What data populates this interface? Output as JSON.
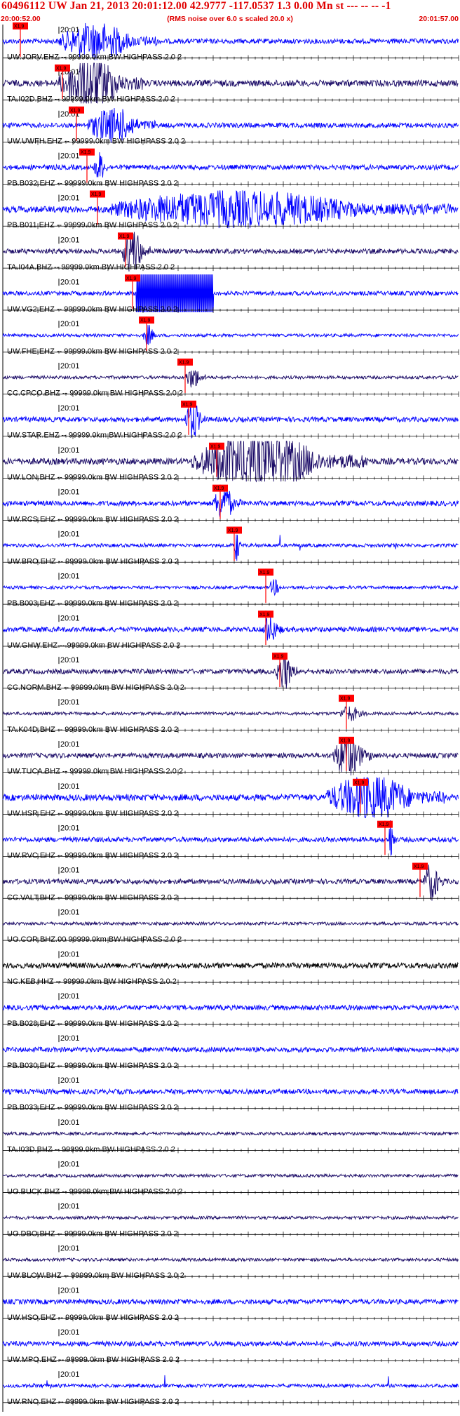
{
  "header": {
    "title": "60496112 UW Jan 21, 2013 20:01:12.00   42.9777 -117.0537  1.3 0.00 Mn st --- -- --  -1",
    "subtitle": "(RMS noise over 6.0 s scaled 20.0 x)",
    "start_time": "20:00:52.00",
    "end_time": "20:01:57.00"
  },
  "minute_label": "20:01",
  "pick_label": "X1.9",
  "colors": {
    "header": "#e00000",
    "trace_blue": "#0000ff",
    "trace_navy": "#1a0a66",
    "trace_black": "#000000",
    "pick": "#ff0000",
    "axis": "#000000"
  },
  "chart_data": {
    "type": "seismogram",
    "time_range_s": [
      0,
      65
    ],
    "x_tick_minor_s": 1,
    "x_tick_major_s": 5,
    "traces": [
      {
        "label": "UW.JORV.EHZ -- 99999.0km BW  HIGHPASS  2.0  2",
        "pick_s": 2.5,
        "color": "blue",
        "amp": "mid",
        "burst_s": [
          8,
          22
        ],
        "bamp": 2.2
      },
      {
        "label": "TA.I02D.BHZ -- 99999.0km BW  HIGHPASS  2.0  2",
        "pick_s": 8.5,
        "color": "navy",
        "amp": "high",
        "burst_s": [
          8,
          20
        ],
        "bamp": 2.5
      },
      {
        "label": "UW.UWFH.EHZ -- 99999.0km BW  HIGHPASS  2.0  2",
        "pick_s": 10.5,
        "color": "blue",
        "amp": "mid",
        "burst_s": [
          12,
          22
        ],
        "bamp": 2.0
      },
      {
        "label": "PB.B032.EHZ -- 99999.0km BW  HIGHPASS  2.0  2",
        "pick_s": 12.0,
        "color": "blue",
        "amp": "mid",
        "burst_s": [
          13,
          15
        ],
        "bamp": 1.8
      },
      {
        "label": "PB.B011.EHZ -- 99999.0km BW  HIGHPASS  2.0  2",
        "pick_s": 13.5,
        "color": "blue",
        "amp": "high",
        "burst_s": [
          15,
          64
        ],
        "bamp": 1.6
      },
      {
        "label": "TA.I04A.BHZ -- 99999.0km BW  HIGHPASS  2.0  2",
        "pick_s": 17.5,
        "color": "navy",
        "amp": "mid",
        "burst_s": [
          17,
          21
        ],
        "bamp": 2.6
      },
      {
        "label": "UW.VG2.EHZ -- 99999.0km BW  HIGHPASS  2.0  2",
        "pick_s": 18.5,
        "color": "blue",
        "amp": "clip",
        "burst_s": [
          19,
          30
        ],
        "bamp": 4.0
      },
      {
        "label": "UW.FHE.EHZ -- 99999.0km BW  HIGHPASS  2.0  2",
        "pick_s": 20.5,
        "color": "blue",
        "amp": "low",
        "burst_s": [
          20,
          22
        ],
        "bamp": 2.0
      },
      {
        "label": "CC.CPCO.BHZ -- 99999.0km BW  HIGHPASS  2.0  2",
        "pick_s": 26.0,
        "color": "navy",
        "amp": "low",
        "burst_s": [
          26,
          29
        ],
        "bamp": 2.0
      },
      {
        "label": "UW.STAR.EHZ -- 99999.0km BW  HIGHPASS  2.0  2",
        "pick_s": 26.5,
        "color": "blue",
        "amp": "mid",
        "burst_s": [
          26,
          29
        ],
        "bamp": 2.2
      },
      {
        "label": "UW.LON.BHZ -- 99999.0km BW  HIGHPASS  2.0  2",
        "pick_s": 30.5,
        "color": "navy",
        "amp": "high",
        "burst_s": [
          27,
          52
        ],
        "bamp": 2.6
      },
      {
        "label": "UW.RCS.EHZ -- 99999.0km BW  HIGHPASS  2.0  2",
        "pick_s": 31.0,
        "color": "blue",
        "amp": "mid",
        "burst_s": [
          30,
          34
        ],
        "bamp": 2.0
      },
      {
        "label": "UW.BRO.EHZ -- 99999.0km BW  HIGHPASS  2.0  2",
        "pick_s": 33.0,
        "color": "blue",
        "amp": "spike",
        "burst_s": [
          33,
          34
        ],
        "bamp": 2.8
      },
      {
        "label": "PB.B003.EHZ -- 99999.0km BW  HIGHPASS  2.0  2",
        "pick_s": 37.5,
        "color": "blue",
        "amp": "low",
        "burst_s": [
          38,
          40
        ],
        "bamp": 1.4
      },
      {
        "label": "UW.GHW.EHZ -- 99999.0km BW  HIGHPASS  2.0  2",
        "pick_s": 37.5,
        "color": "blue",
        "amp": "mid",
        "burst_s": [
          37,
          40
        ],
        "bamp": 1.6
      },
      {
        "label": "CC.NORM.BHZ -- 99999.0km BW  HIGHPASS  2.0  2",
        "pick_s": 39.5,
        "color": "navy",
        "amp": "mid",
        "burst_s": [
          39,
          42
        ],
        "bamp": 2.2
      },
      {
        "label": "TA.K04D.BHZ -- 99999.0km BW  HIGHPASS  2.0  2",
        "pick_s": 49.0,
        "color": "navy",
        "amp": "low",
        "burst_s": [
          48,
          52
        ],
        "bamp": 1.4
      },
      {
        "label": "UW.TUCA.BHZ -- 99999.0km BW  HIGHPASS  2.0  2",
        "pick_s": 49.0,
        "color": "navy",
        "amp": "mid",
        "burst_s": [
          47,
          53
        ],
        "bamp": 2.4
      },
      {
        "label": "UW.HSR.EHZ -- 99999.0km BW  HIGHPASS  2.0  2",
        "pick_s": 51.0,
        "color": "blue",
        "amp": "high",
        "burst_s": [
          46,
          63
        ],
        "bamp": 2.0
      },
      {
        "label": "UW.RVC.EHZ -- 99999.0km BW  HIGHPASS  2.0  2",
        "pick_s": 54.5,
        "color": "blue",
        "amp": "mid",
        "burst_s": [
          55,
          56
        ],
        "bamp": 3.0
      },
      {
        "label": "CC.VALT.BHZ -- 99999.0km BW  HIGHPASS  2.0  2",
        "pick_s": 59.5,
        "color": "navy",
        "amp": "mid",
        "burst_s": [
          60,
          63
        ],
        "bamp": 2.2
      },
      {
        "label": "UO.COR.BHZ.00 99999.0km BW  HIGHPASS  2.0  2",
        "color": "navy",
        "amp": "low"
      },
      {
        "label": "NC.KEB.HHZ -- 99999.0km BW  HIGHPASS  2.0  2",
        "color": "black",
        "amp": "dense"
      },
      {
        "label": "PB.B028.EHZ -- 99999.0km BW  HIGHPASS  2.0  2",
        "color": "blue",
        "amp": "mid"
      },
      {
        "label": "PB.B030.EHZ -- 99999.0km BW  HIGHPASS  2.0  2",
        "color": "blue",
        "amp": "mid"
      },
      {
        "label": "PB.B033.EHZ -- 99999.0km BW  HIGHPASS  2.0  2",
        "color": "blue",
        "amp": "mid"
      },
      {
        "label": "TA.I03D.BHZ -- 99999.0km BW  HIGHPASS  2.0  2",
        "color": "navy",
        "amp": "low"
      },
      {
        "label": "UO.BUCK.BHZ -- 99999.0km BW  HIGHPASS  2.0  2",
        "color": "navy",
        "amp": "low"
      },
      {
        "label": "UO.DBO.BHZ -- 99999.0km BW  HIGHPASS  2.0  2",
        "color": "navy",
        "amp": "low"
      },
      {
        "label": "UW.BLOW.BHZ -- 99999.0km BW  HIGHPASS  2.0  2",
        "color": "navy",
        "amp": "low"
      },
      {
        "label": "UW.HSO.EHZ -- 99999.0km BW  HIGHPASS  2.0  2",
        "color": "blue",
        "amp": "mid"
      },
      {
        "label": "UW.MPO.EHZ -- 99999.0km BW  HIGHPASS  2.0  2",
        "color": "blue",
        "amp": "mid"
      },
      {
        "label": "UW.RNO.EHZ -- 99999.0km BW  HIGHPASS  2.0  2",
        "color": "blue",
        "amp": "spike"
      }
    ]
  }
}
